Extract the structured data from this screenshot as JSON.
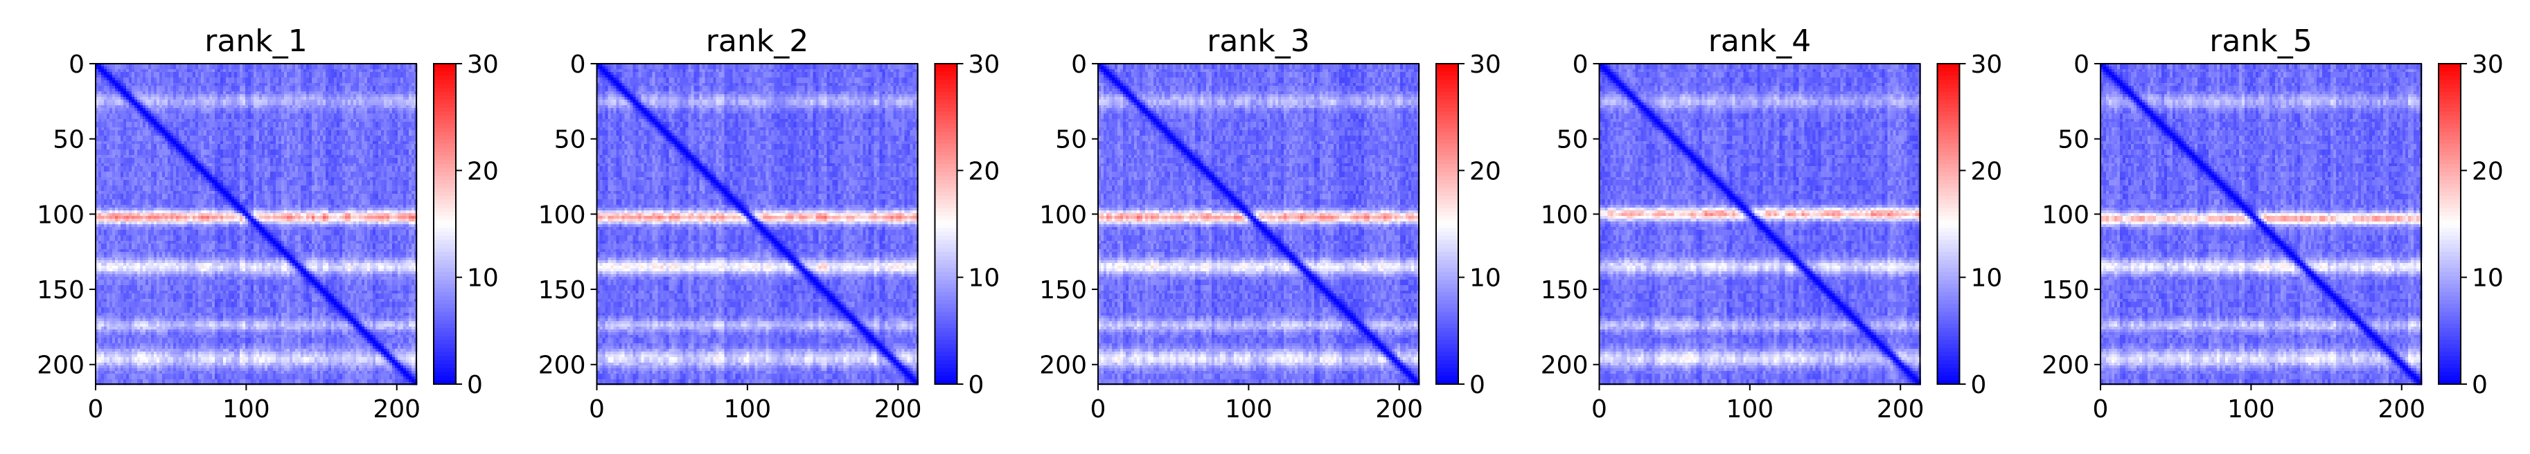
{
  "chart_data": [
    {
      "type": "heatmap",
      "title": "rank_1",
      "xlim": [
        0,
        213
      ],
      "ylim": [
        213,
        0
      ],
      "xticks": [
        0,
        100,
        200
      ],
      "yticks": [
        0,
        50,
        100,
        150,
        200
      ],
      "colorbar": {
        "range": [
          0,
          30
        ],
        "ticks": [
          0,
          10,
          20,
          30
        ],
        "colormap": [
          "#0000ff",
          "#ffffff",
          "#ff0000"
        ]
      },
      "high_bands": [
        {
          "rows": [
            98,
            106
          ],
          "level": 22
        },
        {
          "rows": [
            130,
            140
          ],
          "level": 14
        }
      ],
      "mid_bands": [
        {
          "rows": [
            20,
            30
          ],
          "level": 11
        },
        {
          "rows": [
            170,
            178
          ],
          "level": 12
        },
        {
          "rows": [
            190,
            202
          ],
          "level": 14
        }
      ],
      "diagonal_level": 0
    },
    {
      "type": "heatmap",
      "title": "rank_2",
      "xlim": [
        0,
        213
      ],
      "ylim": [
        213,
        0
      ],
      "xticks": [
        0,
        100,
        200
      ],
      "yticks": [
        0,
        50,
        100,
        150,
        200
      ],
      "colorbar": {
        "range": [
          0,
          30
        ],
        "ticks": [
          0,
          10,
          20,
          30
        ],
        "colormap": [
          "#0000ff",
          "#ffffff",
          "#ff0000"
        ]
      },
      "high_bands": [
        {
          "rows": [
            98,
            106
          ],
          "level": 22
        },
        {
          "rows": [
            130,
            140
          ],
          "level": 16
        }
      ],
      "mid_bands": [
        {
          "rows": [
            20,
            30
          ],
          "level": 11
        },
        {
          "rows": [
            170,
            178
          ],
          "level": 12
        },
        {
          "rows": [
            190,
            202
          ],
          "level": 14
        }
      ],
      "diagonal_level": 0
    },
    {
      "type": "heatmap",
      "title": "rank_3",
      "xlim": [
        0,
        213
      ],
      "ylim": [
        213,
        0
      ],
      "xticks": [
        0,
        100,
        200
      ],
      "yticks": [
        0,
        50,
        100,
        150,
        200
      ],
      "colorbar": {
        "range": [
          0,
          30
        ],
        "ticks": [
          0,
          10,
          20,
          30
        ],
        "colormap": [
          "#0000ff",
          "#ffffff",
          "#ff0000"
        ]
      },
      "high_bands": [
        {
          "rows": [
            98,
            106
          ],
          "level": 22
        },
        {
          "rows": [
            130,
            140
          ],
          "level": 15
        }
      ],
      "mid_bands": [
        {
          "rows": [
            20,
            30
          ],
          "level": 11
        },
        {
          "rows": [
            170,
            178
          ],
          "level": 12
        },
        {
          "rows": [
            190,
            202
          ],
          "level": 14
        }
      ],
      "diagonal_level": 0
    },
    {
      "type": "heatmap",
      "title": "rank_4",
      "xlim": [
        0,
        213
      ],
      "ylim": [
        213,
        0
      ],
      "xticks": [
        0,
        100,
        200
      ],
      "yticks": [
        0,
        50,
        100,
        150,
        200
      ],
      "colorbar": {
        "range": [
          0,
          30
        ],
        "ticks": [
          0,
          10,
          20,
          30
        ],
        "colormap": [
          "#0000ff",
          "#ffffff",
          "#ff0000"
        ]
      },
      "high_bands": [
        {
          "rows": [
            96,
            104
          ],
          "level": 21
        },
        {
          "rows": [
            130,
            140
          ],
          "level": 14
        }
      ],
      "mid_bands": [
        {
          "rows": [
            20,
            30
          ],
          "level": 11
        },
        {
          "rows": [
            170,
            178
          ],
          "level": 12
        },
        {
          "rows": [
            190,
            202
          ],
          "level": 14
        }
      ],
      "diagonal_level": 0
    },
    {
      "type": "heatmap",
      "title": "rank_5",
      "xlim": [
        0,
        213
      ],
      "ylim": [
        213,
        0
      ],
      "xticks": [
        0,
        100,
        200
      ],
      "yticks": [
        0,
        50,
        100,
        150,
        200
      ],
      "colorbar": {
        "range": [
          0,
          30
        ],
        "ticks": [
          0,
          10,
          20,
          30
        ],
        "colormap": [
          "#0000ff",
          "#ffffff",
          "#ff0000"
        ]
      },
      "high_bands": [
        {
          "rows": [
            99,
            107
          ],
          "level": 21
        },
        {
          "rows": [
            130,
            140
          ],
          "level": 15
        }
      ],
      "mid_bands": [
        {
          "rows": [
            20,
            30
          ],
          "level": 11
        },
        {
          "rows": [
            170,
            178
          ],
          "level": 12
        },
        {
          "rows": [
            190,
            202
          ],
          "level": 14
        }
      ],
      "diagonal_level": 0
    }
  ]
}
